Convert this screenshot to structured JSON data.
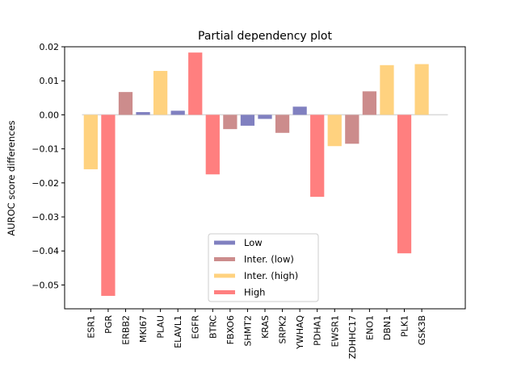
{
  "chart_data": {
    "type": "bar",
    "title": "Partial dependency plot",
    "xlabel": "",
    "ylabel": "AUROC score differences",
    "ylim": [
      -0.057,
      0.02
    ],
    "yticks": [
      0.02,
      0.01,
      0.0,
      -0.01,
      -0.02,
      -0.03,
      -0.04,
      -0.05
    ],
    "ytick_labels": [
      "0.02",
      "0.01",
      "0.00",
      "−0.01",
      "−0.02",
      "−0.03",
      "−0.04",
      "−0.05"
    ],
    "categories": [
      "ESR1",
      "PGR",
      "ERBB2",
      "MKI67",
      "PLAU",
      "ELAVL1",
      "EGFR",
      "BTRC",
      "FBXO6",
      "SHMT2",
      "KRAS",
      "SRPK2",
      "YWHAQ",
      "PDHA1",
      "EWSR1",
      "ZDHHC17",
      "ENO1",
      "DBN1",
      "PLK1",
      "GSK3B"
    ],
    "values": [
      -0.016,
      -0.0532,
      0.0067,
      0.0008,
      0.0129,
      0.0012,
      0.0183,
      -0.0175,
      -0.0042,
      -0.0032,
      -0.0012,
      -0.0053,
      0.0024,
      -0.0241,
      -0.0092,
      -0.0085,
      0.0069,
      0.0146,
      -0.0407,
      0.0149
    ],
    "groups": [
      "Inter. (high)",
      "High",
      "Inter. (low)",
      "Low",
      "Inter. (high)",
      "Low",
      "High",
      "High",
      "Inter. (low)",
      "Low",
      "Low",
      "Inter. (low)",
      "Low",
      "High",
      "Inter. (high)",
      "Inter. (low)",
      "Inter. (low)",
      "Inter. (high)",
      "High",
      "Inter. (high)"
    ],
    "legend": {
      "placement": "lower-center",
      "entries": [
        {
          "name": "Low",
          "color": "#8080c0"
        },
        {
          "name": "Inter. (low)",
          "color": "#cc8c8c"
        },
        {
          "name": "Inter. (high)",
          "color": "#ffd27f"
        },
        {
          "name": "High",
          "color": "#ff7f7f"
        }
      ]
    },
    "zero_line_color": "#d9d9d9",
    "grid": false
  }
}
